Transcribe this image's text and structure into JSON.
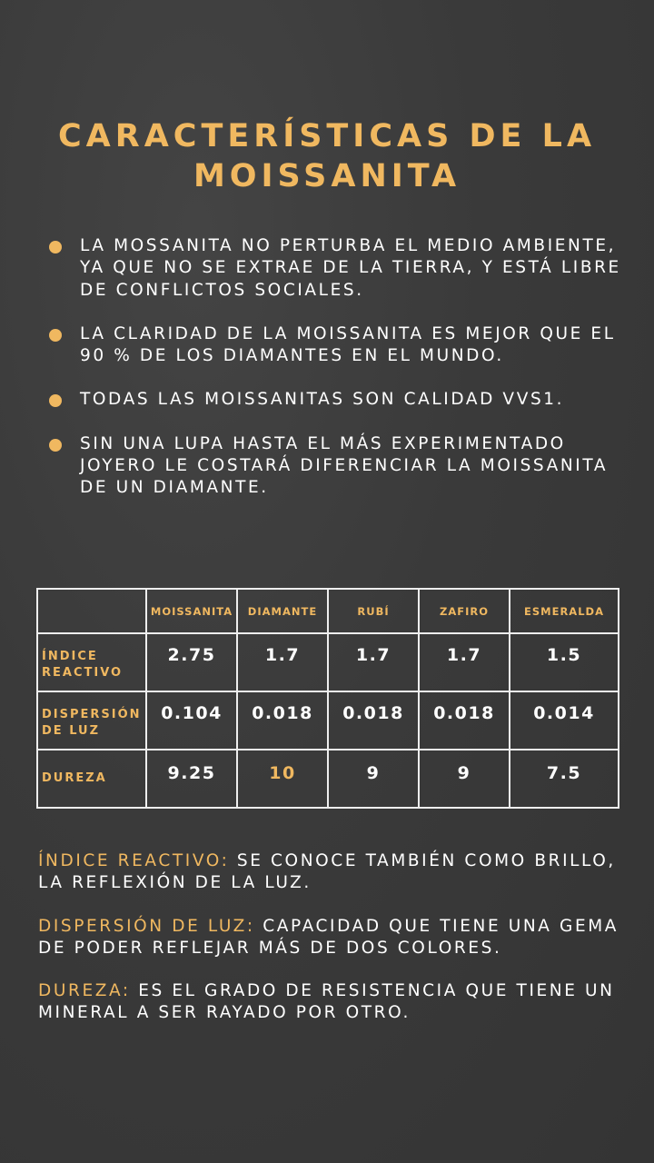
{
  "title": {
    "line1": "CARACTERÍSTICAS DE LA",
    "line2": "MOISSANITA"
  },
  "bullets": [
    "LA MOSSANITA NO PERTURBA EL MEDIO AMBIENTE, YA QUE NO SE EXTRAE DE LA TIERRA, Y ESTÁ LIBRE DE CONFLICTOS SOCIALES.",
    "LA CLARIDAD DE LA MOISSANITA ES MEJOR QUE EL 90 % DE LOS DIAMANTES EN EL MUNDO.",
    "TODAS LAS MOISSANITAS SON CALIDAD VVS1.",
    "SIN UNA LUPA HASTA EL MÁS EXPERIMENTADO JOYERO LE COSTARÁ DIFERENCIAR LA MOISSANITA DE UN DIAMANTE."
  ],
  "table": {
    "columns": [
      "",
      "MOISSANITA",
      "DIAMANTE",
      "RUBÍ",
      "ZAFIRO",
      "ESMERALDA"
    ],
    "rows": [
      {
        "label": "ÍNDICE REACTIVO",
        "values": [
          "2.75",
          "1.7",
          "1.7",
          "1.7",
          "1.5"
        ]
      },
      {
        "label": "DISPERSIÓN DE LUZ",
        "values": [
          "0.104",
          "0.018",
          "0.018",
          "0.018",
          "0.014"
        ]
      },
      {
        "label": "DUREZA",
        "values": [
          "9.25",
          "10",
          "9",
          "9",
          "7.5"
        ]
      }
    ],
    "highlight": {
      "row": 2,
      "col": 1,
      "color": "#f0b860"
    }
  },
  "definitions": [
    {
      "term": "ÍNDICE REACTIVO:",
      "text": " SE CONOCE TAMBIÉN COMO BRILLO, LA REFLEXIÓN DE LA LUZ."
    },
    {
      "term": "DISPERSIÓN DE LUZ:",
      "text": " CAPACIDAD QUE TIENE UNA GEMA DE PODER REFLEJAR MÁS DE DOS COLORES."
    },
    {
      "term": "DUREZA:",
      "text": " ES EL GRADO DE RESISTENCIA QUE TIENE UN MINERAL A SER RAYADO POR OTRO."
    }
  ],
  "colors": {
    "accent": "#f0b860",
    "background": "#3a3a3a",
    "text": "#ffffff"
  }
}
